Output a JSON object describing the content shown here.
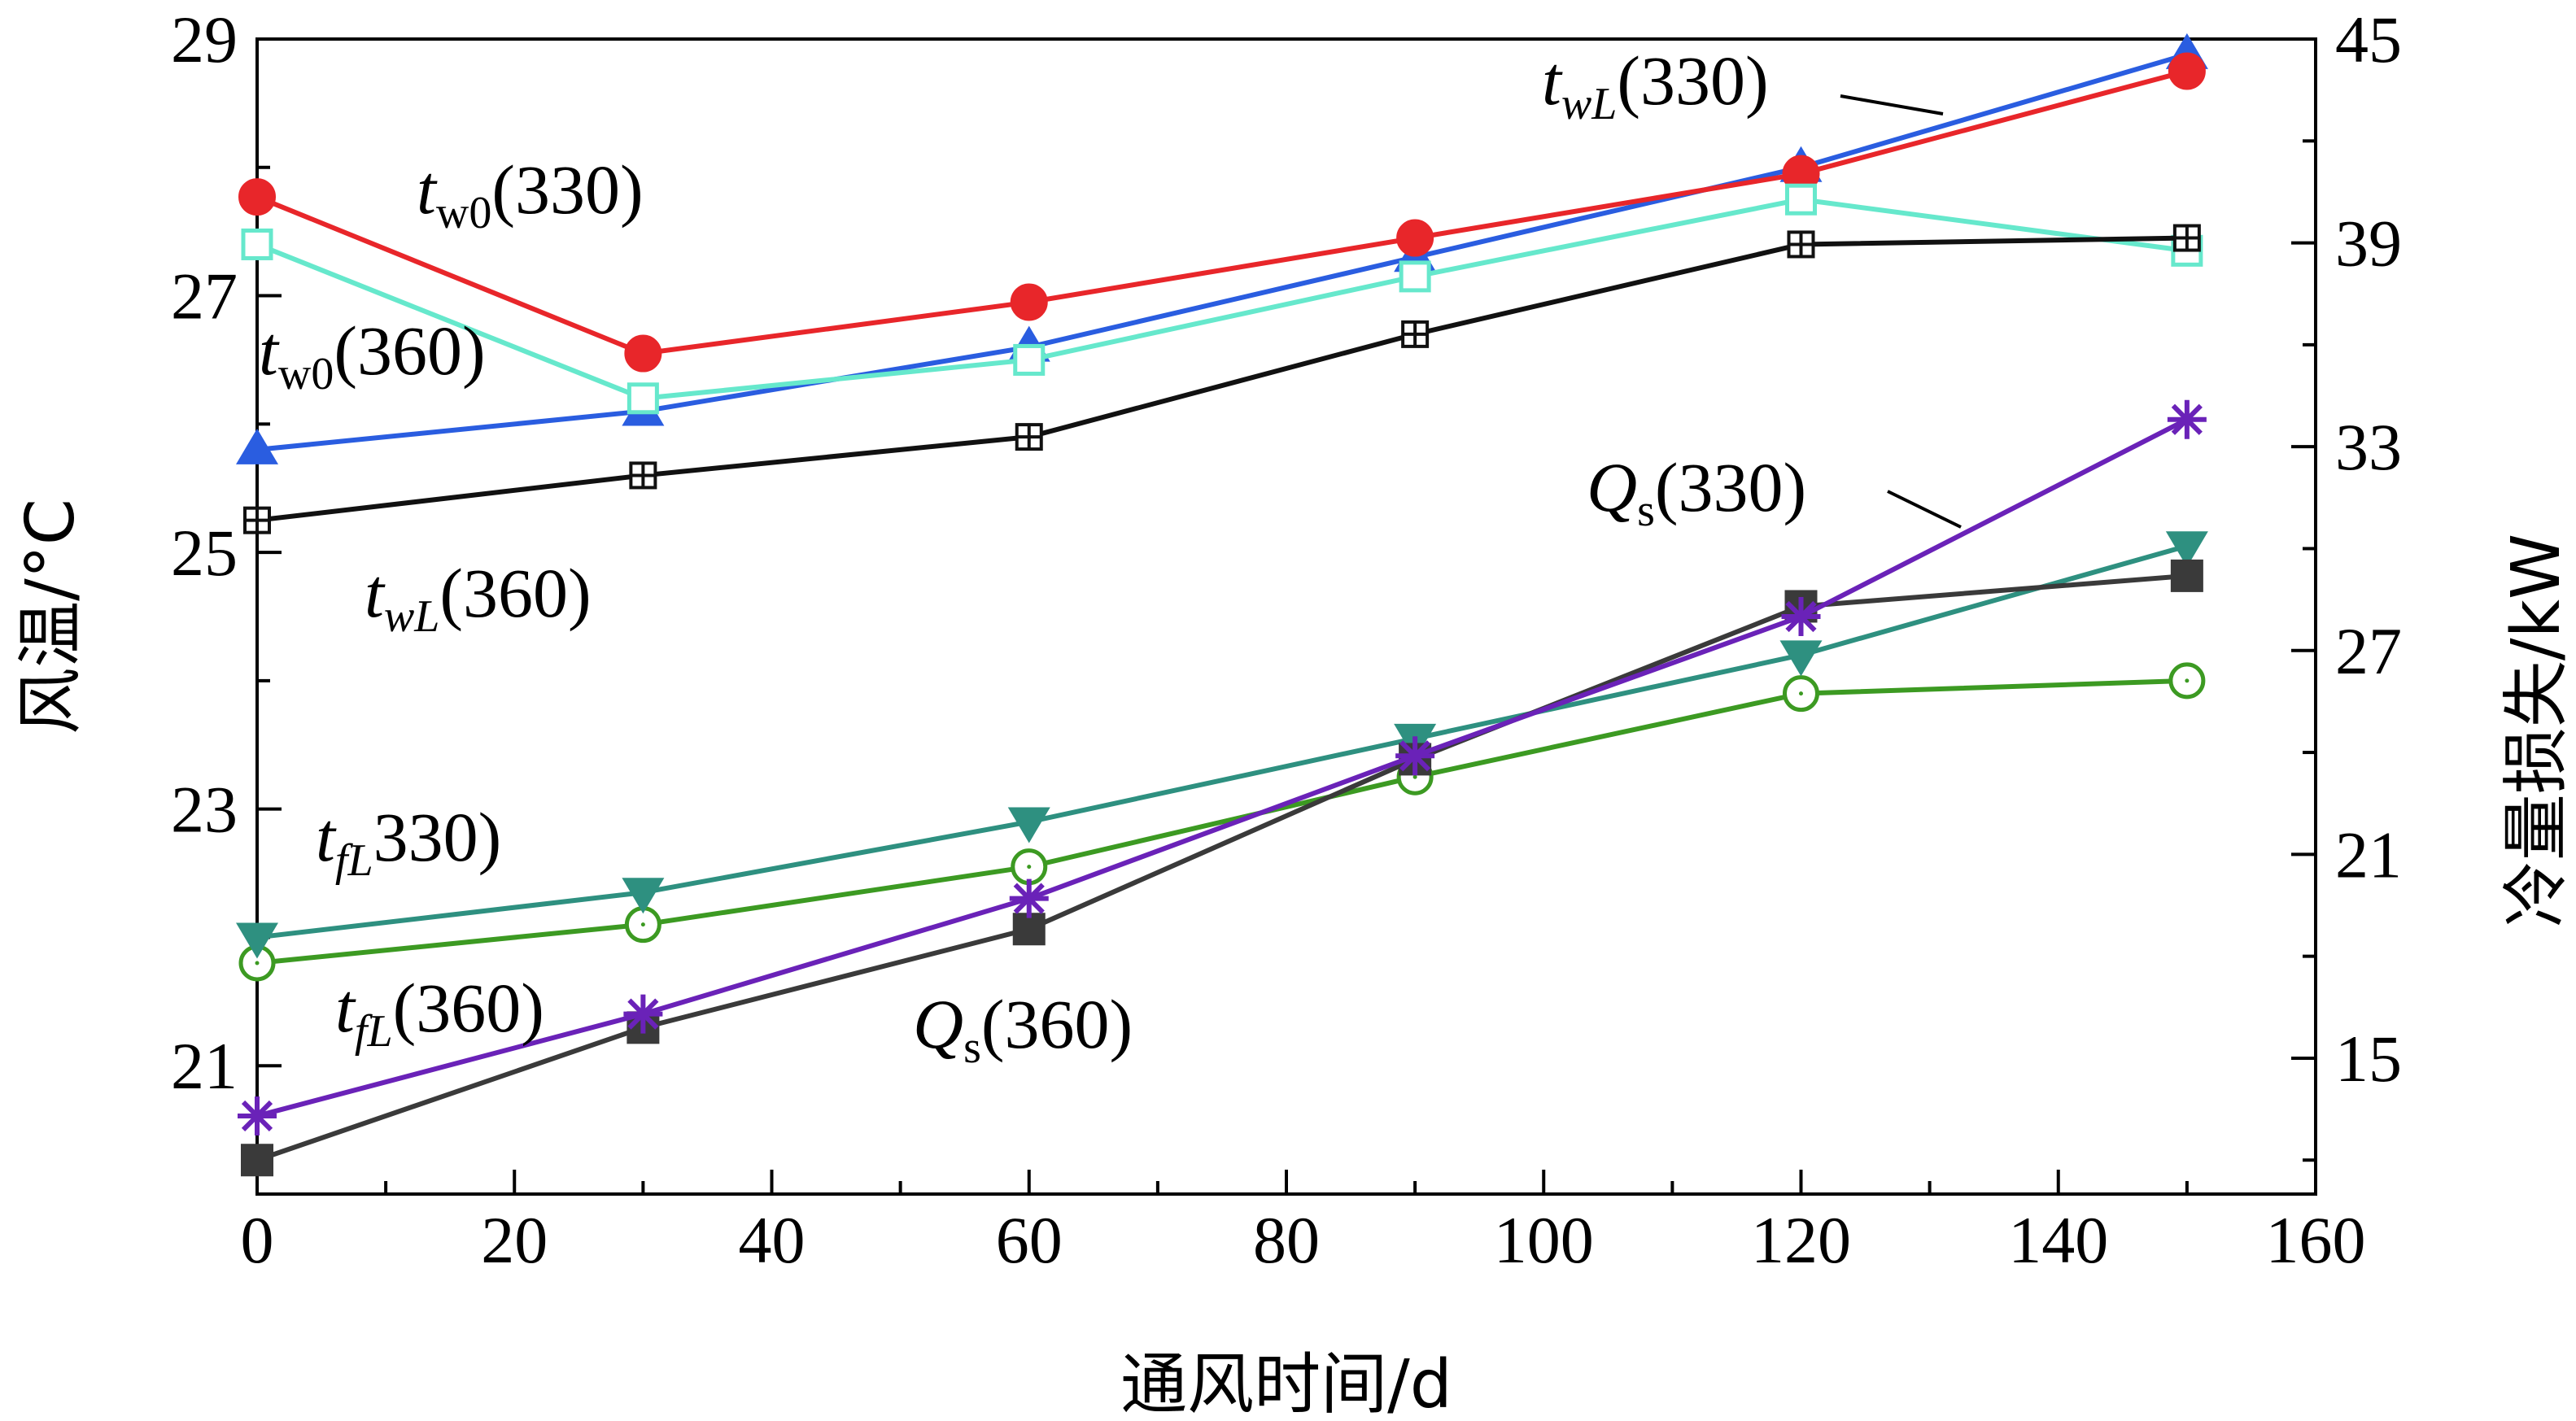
{
  "chart_data": {
    "type": "line",
    "xlabel": "通风时间/d",
    "ylabel_left": "风温/°C",
    "ylabel_right": "冷量损失/kW",
    "xlim": [
      0,
      160
    ],
    "ylim_left": [
      20,
      29
    ],
    "ylim_right": [
      11,
      45
    ],
    "x_ticks": [
      "0",
      "20",
      "40",
      "60",
      "80",
      "100",
      "120",
      "140",
      "160"
    ],
    "y_ticks_left": [
      "21",
      "23",
      "25",
      "27",
      "29"
    ],
    "y_ticks_right": [
      "15",
      "21",
      "27",
      "33",
      "39",
      "45"
    ],
    "grid": false,
    "x": [
      0,
      30,
      60,
      90,
      120,
      150
    ],
    "series": [
      {
        "key": "tw0_330",
        "axis": "left",
        "color": "#e8262a",
        "marker": "filled-circle",
        "values": [
          27.77,
          26.55,
          26.95,
          27.45,
          27.95,
          28.75
        ]
      },
      {
        "key": "twL_330",
        "axis": "left",
        "color": "#2a5de0",
        "marker": "filled-triangle-up",
        "values": [
          25.8,
          26.1,
          26.6,
          27.3,
          28.0,
          28.88
        ]
      },
      {
        "key": "tw0_360",
        "axis": "left",
        "color": "#66e8cc",
        "marker": "open-square",
        "values": [
          27.4,
          26.2,
          26.5,
          27.15,
          27.75,
          27.35
        ]
      },
      {
        "key": "twL_360",
        "axis": "left",
        "color": "#111111",
        "marker": "square-cross",
        "values": [
          25.25,
          25.6,
          25.9,
          26.7,
          27.4,
          27.45
        ]
      },
      {
        "key": "tfL_330",
        "axis": "left",
        "color": "#2e9080",
        "marker": "filled-triangle-down",
        "values": [
          22.0,
          22.35,
          22.9,
          23.55,
          24.2,
          25.05
        ]
      },
      {
        "key": "tfL_360",
        "axis": "left",
        "color": "#3c9a22",
        "marker": "open-circle-dot",
        "values": [
          21.8,
          22.1,
          22.55,
          23.25,
          23.9,
          24.0
        ]
      },
      {
        "key": "Qs_330",
        "axis": "right",
        "color": "#6a22b8",
        "marker": "asterisk",
        "values": [
          13.3,
          16.3,
          19.7,
          23.9,
          28.0,
          33.8
        ]
      },
      {
        "key": "Qs_360",
        "axis": "right",
        "color": "#3a3a3a",
        "marker": "filled-square",
        "values": [
          12.0,
          15.9,
          18.8,
          23.8,
          28.3,
          29.2
        ]
      }
    ],
    "annotations": [
      {
        "key": "tw0_330",
        "var": "t",
        "sub": "w0",
        "sub_italic": false,
        "tail": "(330)"
      },
      {
        "key": "twL_330",
        "var": "t",
        "sub": "wL",
        "sub_italic": true,
        "tail": "(330)"
      },
      {
        "key": "tw0_360",
        "var": "t",
        "sub": "w0",
        "sub_italic": false,
        "tail": "(360)"
      },
      {
        "key": "twL_360",
        "var": "t",
        "sub": "wL",
        "sub_italic": true,
        "tail": "(360)"
      },
      {
        "key": "tfL_330",
        "var": "t",
        "sub": "fL",
        "sub_italic": true,
        "tail": "330)"
      },
      {
        "key": "tfL_360",
        "var": "t",
        "sub": "fL",
        "sub_italic": true,
        "tail": "(360)"
      },
      {
        "key": "Qs_330",
        "var": "Q",
        "sub": "s",
        "sub_italic": false,
        "tail": "(330)"
      },
      {
        "key": "Qs_360",
        "var": "Q",
        "sub": "s",
        "sub_italic": false,
        "tail": "(360)"
      }
    ]
  }
}
